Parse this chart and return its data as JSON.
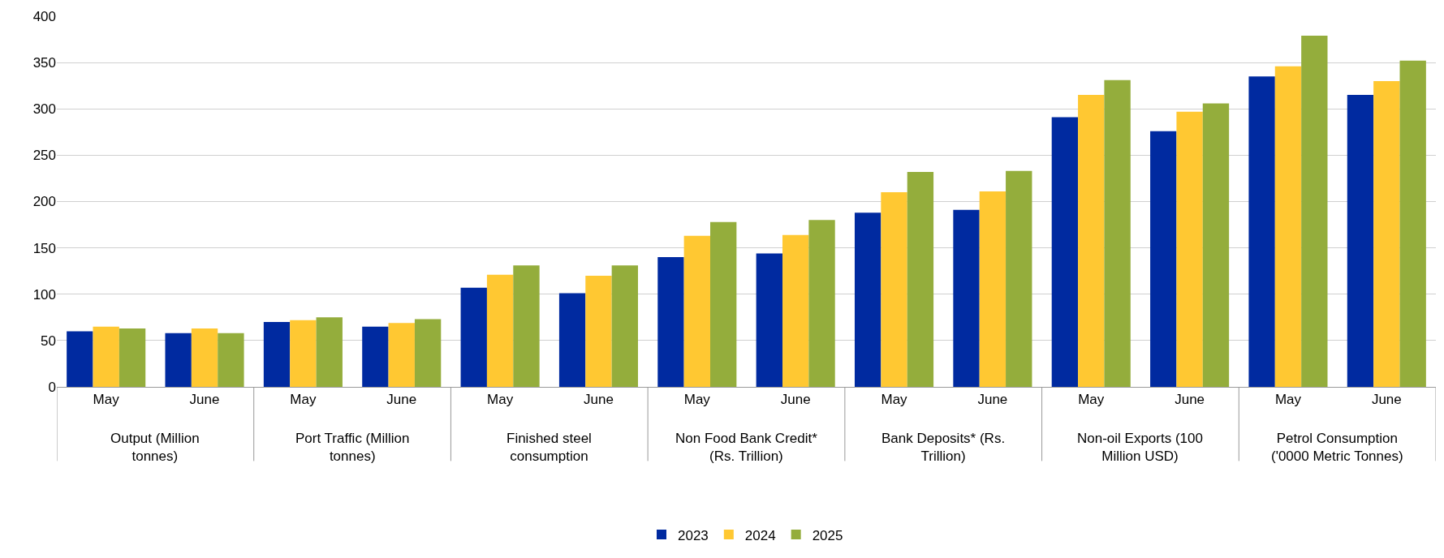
{
  "chart_data": {
    "type": "bar",
    "categories": [
      "May",
      "June",
      "May",
      "June",
      "May",
      "June",
      "May",
      "June",
      "May",
      "June",
      "May",
      "June",
      "May",
      "June"
    ],
    "annotations": [
      "Output (Million tonnes)",
      "Port Traffic (Million tonnes)",
      "Finished steel consumption",
      "Non Food Bank Credit* (Rs. Trillion)",
      "Bank Deposits* (Rs. Trillion)",
      "Non-oil Exports (100 Million USD)",
      "Petrol Consumption ('0000 Metric Tonnes)"
    ],
    "series": [
      {
        "name": "2023",
        "color": "#002aa0",
        "values": [
          60,
          58,
          70,
          65,
          107,
          101,
          140,
          144,
          188,
          191,
          291,
          276,
          335,
          315
        ]
      },
      {
        "name": "2024",
        "color": "#ffc832",
        "values": [
          65,
          63,
          72,
          69,
          121,
          120,
          163,
          164,
          210,
          211,
          315,
          297,
          346,
          330
        ]
      },
      {
        "name": "2025",
        "color": "#94ad3c",
        "values": [
          63,
          58,
          75,
          73,
          131,
          131,
          178,
          180,
          232,
          233,
          331,
          306,
          379,
          352
        ]
      }
    ],
    "ylim": [
      0,
      400
    ],
    "yticks": [
      0,
      50,
      100,
      150,
      200,
      250,
      300,
      350,
      400
    ],
    "grid": "y",
    "legend": "bottom"
  }
}
